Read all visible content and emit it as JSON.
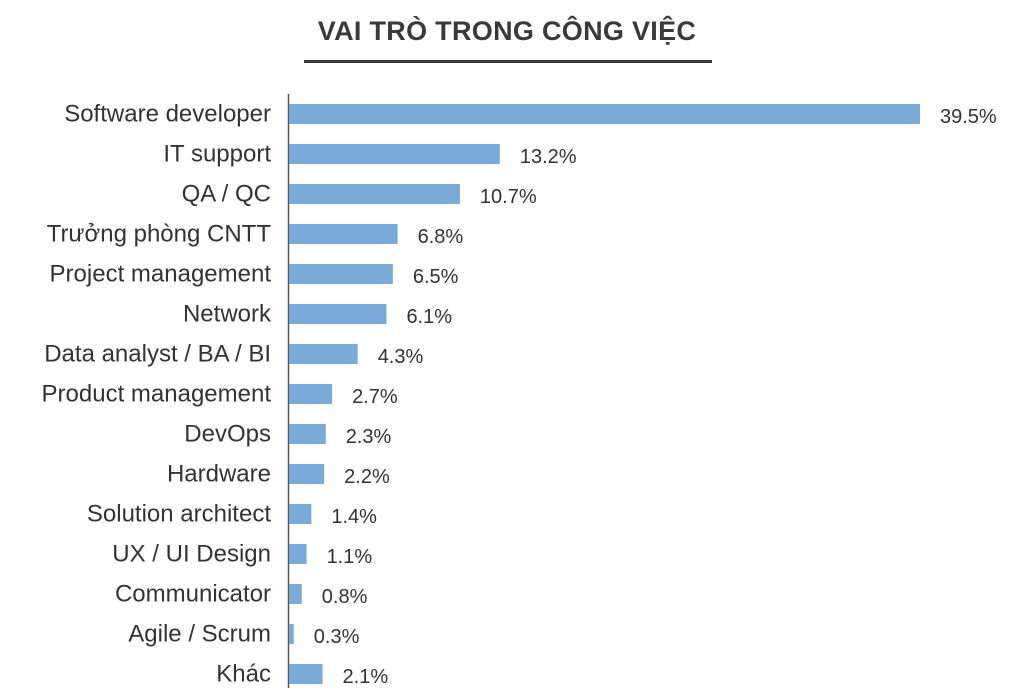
{
  "chart_data": {
    "type": "bar",
    "orientation": "horizontal",
    "title": "VAI TRÒ TRONG CÔNG VIỆC",
    "categories": [
      "Software developer",
      "IT support",
      "QA / QC",
      "Trưởng phòng CNTT",
      "Project management",
      "Network",
      "Data analyst / BA / BI",
      "Product management",
      "DevOps",
      "Hardware",
      "Solution architect",
      "UX / UI Design",
      "Communicator",
      "Agile / Scrum",
      "Khác"
    ],
    "values": [
      39.5,
      13.2,
      10.7,
      6.8,
      6.5,
      6.1,
      4.3,
      2.7,
      2.3,
      2.2,
      1.4,
      1.1,
      0.8,
      0.3,
      2.1
    ],
    "data_labels": [
      "39.5%",
      "13.2%",
      "10.7%",
      "6.8%",
      "6.5%",
      "6.1%",
      "4.3%",
      "2.7%",
      "2.3%",
      "2.2%",
      "1.4%",
      "1.1%",
      "0.8%",
      "0.3%",
      "2.1%"
    ],
    "unit": "%",
    "xlim": [
      0,
      39.5
    ],
    "grid": false,
    "legend": "none",
    "bar_color": "#7aaad8",
    "axis_color": "#555555"
  }
}
